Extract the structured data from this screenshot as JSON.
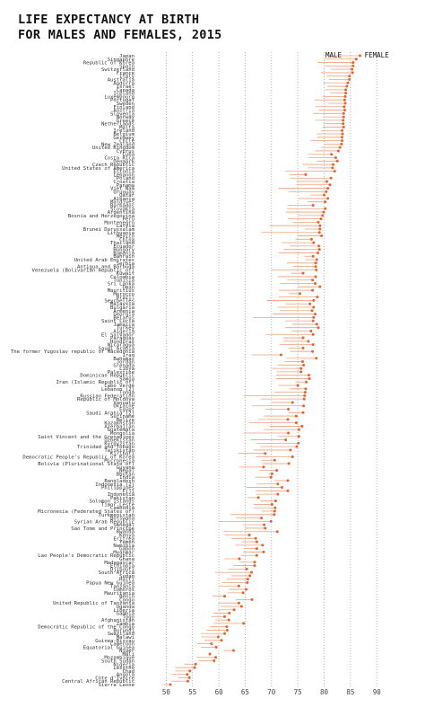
{
  "chart_data": {
    "type": "dumbbell",
    "title_lines": [
      "LIFE EXPECTANCY AT BIRTH",
      "FOR MALES AND FEMALES, 2015"
    ],
    "legend": {
      "male": "MALE",
      "female": "FEMALE"
    },
    "colors": {
      "female": "#e8622d",
      "male_line": "#f2a07a",
      "grid": "#9a9a9a"
    },
    "xlim": [
      45,
      92
    ],
    "xticks": [
      50,
      55,
      60,
      65,
      70,
      75,
      80,
      85,
      90
    ],
    "grid": "dotted-vertical",
    "rows": [
      {
        "country": "Japan",
        "male": 80.5,
        "female": 86.8
      },
      {
        "country": "Singapore",
        "male": 80.0,
        "female": 86.1
      },
      {
        "country": "Republic of Korea",
        "male": 78.8,
        "female": 85.5
      },
      {
        "country": "Spain",
        "male": 80.1,
        "female": 85.5
      },
      {
        "country": "Switzerland",
        "male": 81.3,
        "female": 85.3
      },
      {
        "country": "France",
        "male": 79.4,
        "female": 85.4
      },
      {
        "country": "Italy",
        "male": 80.5,
        "female": 84.8
      },
      {
        "country": "Australia",
        "male": 80.9,
        "female": 84.8
      },
      {
        "country": "Andorra",
        "male": 79.9,
        "female": 84.5
      },
      {
        "country": "Israel",
        "male": 80.6,
        "female": 84.3
      },
      {
        "country": "Canada",
        "male": 80.2,
        "female": 84.1
      },
      {
        "country": "Iceland",
        "male": 81.2,
        "female": 84.1
      },
      {
        "country": "Luxembourg",
        "male": 79.8,
        "female": 84.0
      },
      {
        "country": "Portugal",
        "male": 78.2,
        "female": 83.9
      },
      {
        "country": "Sweden",
        "male": 80.7,
        "female": 84.0
      },
      {
        "country": "Finland",
        "male": 78.3,
        "female": 83.8
      },
      {
        "country": "Austria",
        "male": 79.0,
        "female": 83.9
      },
      {
        "country": "Slovenia",
        "male": 77.9,
        "female": 83.7
      },
      {
        "country": "Norway",
        "male": 79.8,
        "female": 83.7
      },
      {
        "country": "Greece",
        "male": 78.3,
        "female": 83.6
      },
      {
        "country": "Netherlands",
        "male": 80.0,
        "female": 83.6
      },
      {
        "country": "Malta",
        "male": 79.7,
        "female": 83.7
      },
      {
        "country": "Ireland",
        "male": 79.4,
        "female": 83.4
      },
      {
        "country": "Belgium",
        "male": 78.6,
        "female": 83.5
      },
      {
        "country": "Germany",
        "male": 78.7,
        "female": 83.4
      },
      {
        "country": "Chile",
        "male": 77.4,
        "female": 83.4
      },
      {
        "country": "New Zealand",
        "male": 80.0,
        "female": 83.3
      },
      {
        "country": "United Kingdom",
        "male": 79.4,
        "female": 83.0
      },
      {
        "country": "Cyprus",
        "male": 78.3,
        "female": 82.7
      },
      {
        "country": "Cuba",
        "male": 76.9,
        "female": 81.4
      },
      {
        "country": "Costa Rica",
        "male": 77.1,
        "female": 82.2
      },
      {
        "country": "Denmark",
        "male": 78.6,
        "female": 82.5
      },
      {
        "country": "Czech Republic",
        "male": 75.9,
        "female": 81.7
      },
      {
        "country": "United States of America",
        "male": 76.9,
        "female": 81.6
      },
      {
        "country": "Estonia",
        "male": 72.7,
        "female": 82.0
      },
      {
        "country": "Lebanon",
        "male": 73.5,
        "female": 76.5
      },
      {
        "country": "Poland",
        "male": 73.6,
        "female": 81.3
      },
      {
        "country": "Croatia",
        "male": 74.7,
        "female": 80.5
      },
      {
        "country": "Panama",
        "male": 74.7,
        "female": 81.1
      },
      {
        "country": "Viet Nam",
        "male": 71.3,
        "female": 80.7
      },
      {
        "country": "Uruguay",
        "male": 73.3,
        "female": 80.4
      },
      {
        "country": "Qatar",
        "male": 77.4,
        "female": 80.0
      },
      {
        "country": "Albania",
        "male": 75.1,
        "female": 80.7
      },
      {
        "country": "Maldives",
        "male": 76.9,
        "female": 80.2
      },
      {
        "country": "Barbados",
        "male": 73.1,
        "female": 77.9
      },
      {
        "country": "Slovakia",
        "male": 72.9,
        "female": 80.2
      },
      {
        "country": "Argentina",
        "male": 72.7,
        "female": 79.9
      },
      {
        "country": "Bosnia and Herzegovina",
        "male": 75.0,
        "female": 79.7
      },
      {
        "country": "Peru",
        "male": 73.1,
        "female": 79.4
      },
      {
        "country": "Montenegro",
        "male": 74.1,
        "female": 78.9
      },
      {
        "country": "Latvia",
        "male": 69.6,
        "female": 79.2
      },
      {
        "country": "Brunei Darussalam",
        "male": 76.3,
        "female": 79.2
      },
      {
        "country": "Lithuania",
        "male": 68.1,
        "female": 79.1
      },
      {
        "country": "Mexico",
        "male": 74.9,
        "female": 79.5
      },
      {
        "country": "China",
        "male": 74.6,
        "female": 77.6
      },
      {
        "country": "Thailand",
        "male": 71.9,
        "female": 78.0
      },
      {
        "country": "Ecuador",
        "male": 73.5,
        "female": 79.0
      },
      {
        "country": "Hungary",
        "male": 72.3,
        "female": 79.1
      },
      {
        "country": "Romania",
        "male": 71.4,
        "female": 78.8
      },
      {
        "country": "Bahrain",
        "male": 76.2,
        "female": 77.9
      },
      {
        "country": "United Arab Emirates",
        "male": 76.4,
        "female": 78.6
      },
      {
        "country": "Serbia",
        "male": 72.9,
        "female": 78.4
      },
      {
        "country": "Antigua and Barbuda",
        "male": 74.1,
        "female": 78.4
      },
      {
        "country": "Venezuela (Bolivarian Republic of)",
        "male": 70.0,
        "female": 78.5
      },
      {
        "country": "Kuwait",
        "male": 73.7,
        "female": 76.0
      },
      {
        "country": "Colombia",
        "male": 71.2,
        "female": 78.4
      },
      {
        "country": "Tunisia",
        "male": 73.0,
        "female": 77.8
      },
      {
        "country": "Sri Lanka",
        "male": 71.6,
        "female": 78.3
      },
      {
        "country": "Oman",
        "male": 75.0,
        "female": 79.2
      },
      {
        "country": "Mauritius",
        "male": 71.4,
        "female": 77.8
      },
      {
        "country": "Morocco",
        "male": 73.3,
        "female": 75.4
      },
      {
        "country": "Brazil",
        "male": 71.4,
        "female": 78.7
      },
      {
        "country": "Seychelles",
        "male": 69.1,
        "female": 78.0
      },
      {
        "country": "Malaysia",
        "male": 72.7,
        "female": 77.3
      },
      {
        "country": "Bulgaria",
        "male": 71.1,
        "female": 78.0
      },
      {
        "country": "Armenia",
        "male": 71.6,
        "female": 77.7
      },
      {
        "country": "Georgia",
        "male": 70.3,
        "female": 78.3
      },
      {
        "country": "Belarus",
        "male": 66.5,
        "female": 78.0
      },
      {
        "country": "Saint Lucia",
        "male": 72.6,
        "female": 77.9
      },
      {
        "country": "Jamaica",
        "male": 73.9,
        "female": 78.6
      },
      {
        "country": "Turkey",
        "male": 72.6,
        "female": 78.9
      },
      {
        "country": "Algeria",
        "male": 73.8,
        "female": 77.5
      },
      {
        "country": "El Salvador",
        "male": 68.8,
        "female": 77.9
      },
      {
        "country": "Paraguay",
        "male": 72.2,
        "female": 76.0
      },
      {
        "country": "Honduras",
        "male": 72.3,
        "female": 77.0
      },
      {
        "country": "Nicaragua",
        "male": 71.5,
        "female": 77.9
      },
      {
        "country": "Saudi Arabia",
        "male": 73.2,
        "female": 76.0
      },
      {
        "country": "The former Yugoslav republic of Macedonia",
        "male": 73.5,
        "female": 77.8
      },
      {
        "country": "Iraq",
        "male": 66.2,
        "female": 71.8
      },
      {
        "country": "Bahamas",
        "male": 72.9,
        "female": 78.5
      },
      {
        "country": "Jordan",
        "male": 72.5,
        "female": 75.9
      },
      {
        "country": "Grenada",
        "male": 71.2,
        "female": 76.1
      },
      {
        "country": "Libya",
        "male": 70.1,
        "female": 75.6
      },
      {
        "country": "Palestine",
        "male": 71.0,
        "female": 75.6
      },
      {
        "country": "Dominican Republic",
        "male": 70.9,
        "female": 77.1
      },
      {
        "country": "Samoa",
        "male": 70.9,
        "female": 77.2
      },
      {
        "country": "Iran (Islamic Republic of)",
        "male": 74.5,
        "female": 76.6
      },
      {
        "country": "Cabo Verde",
        "male": 71.3,
        "female": 75.0
      },
      {
        "country": "Lebanon (2)",
        "male": 73.5,
        "female": 76.5
      },
      {
        "country": "Tonga",
        "male": 70.6,
        "female": 76.4
      },
      {
        "country": "Russian Federation",
        "male": 64.7,
        "female": 76.3
      },
      {
        "country": "Republic of Moldova",
        "male": 67.9,
        "female": 76.2
      },
      {
        "country": "Vanuatu",
        "male": 70.1,
        "female": 74.0
      },
      {
        "country": "Ukraine",
        "male": 66.3,
        "female": 76.1
      },
      {
        "country": "Egypt",
        "male": 68.8,
        "female": 73.2
      },
      {
        "country": "Saudi Arabia (2)",
        "male": 73.2,
        "female": 76.0
      },
      {
        "country": "Suriname",
        "male": 68.6,
        "female": 74.7
      },
      {
        "country": "Belize",
        "male": 67.5,
        "female": 73.1
      },
      {
        "country": "Kazakhstan",
        "male": 65.7,
        "female": 74.7
      },
      {
        "country": "Azerbaijan",
        "male": 69.6,
        "female": 75.8
      },
      {
        "country": "Guatemala",
        "male": 68.5,
        "female": 75.2
      },
      {
        "country": "Mongolia",
        "male": 64.7,
        "female": 73.2
      },
      {
        "country": "Saint Vincent and the Grenadines",
        "male": 71.3,
        "female": 75.2
      },
      {
        "country": "Uzbekistan",
        "male": 66.1,
        "female": 72.7
      },
      {
        "country": "Kyrgyzstan",
        "male": 67.2,
        "female": 75.1
      },
      {
        "country": "Trinidad and Tobago",
        "male": 67.9,
        "female": 74.8
      },
      {
        "country": "Tajikistan",
        "male": 66.6,
        "female": 73.6
      },
      {
        "country": "Kiribati",
        "male": 63.7,
        "female": 68.8
      },
      {
        "country": "Democratic People's Republic of Korea",
        "male": 67.0,
        "female": 74.0
      },
      {
        "country": "Micronesia",
        "male": 68.1,
        "female": 70.6
      },
      {
        "country": "Bolivia (Plurinational State of)",
        "male": 68.2,
        "female": 73.3
      },
      {
        "country": "Guyana",
        "male": 63.9,
        "female": 68.5
      },
      {
        "country": "Nepal",
        "male": 67.7,
        "female": 71.0
      },
      {
        "country": "Bhutan",
        "male": 69.5,
        "female": 70.1
      },
      {
        "country": "India",
        "male": 66.9,
        "female": 69.9
      },
      {
        "country": "Bangladesh",
        "male": 70.6,
        "female": 73.1
      },
      {
        "country": "Indonesia (2)",
        "male": 67.1,
        "female": 71.2
      },
      {
        "country": "Philippines",
        "male": 65.3,
        "female": 72.0
      },
      {
        "country": "Fiji",
        "male": 67.0,
        "female": 73.1
      },
      {
        "country": "Indonesia",
        "male": 67.1,
        "female": 71.2
      },
      {
        "country": "Pakistan",
        "male": 65.5,
        "female": 67.5
      },
      {
        "country": "Solomon Islands",
        "male": 67.9,
        "female": 70.8
      },
      {
        "country": "Timor-Leste",
        "male": 66.6,
        "female": 70.1
      },
      {
        "country": "Cambodia",
        "male": 66.6,
        "female": 70.7
      },
      {
        "country": "Micronesia (Federated States of)",
        "male": 68.1,
        "female": 70.6
      },
      {
        "country": "Turkmenistan",
        "male": 62.2,
        "female": 70.5
      },
      {
        "country": "Botswana",
        "male": 63.3,
        "female": 68.1
      },
      {
        "country": "Syrian Arab Republic",
        "male": 59.9,
        "female": 69.9
      },
      {
        "country": "Senegal",
        "male": 64.6,
        "female": 68.6
      },
      {
        "country": "Sao Tome and Principe",
        "male": 65.0,
        "female": 68.8
      },
      {
        "country": "Rwanda",
        "male": 60.9,
        "female": 71.1
      },
      {
        "country": "Kenya",
        "male": 61.1,
        "female": 65.8
      },
      {
        "country": "Eritrea",
        "male": 62.4,
        "female": 67.0
      },
      {
        "country": "Yemen",
        "male": 64.3,
        "female": 67.2
      },
      {
        "country": "Namibia",
        "male": 63.1,
        "female": 68.3
      },
      {
        "country": "Gabon",
        "male": 64.7,
        "female": 67.2
      },
      {
        "country": "Myanmar",
        "male": 64.6,
        "female": 68.5
      },
      {
        "country": "Lao People's Democratic Republic",
        "male": 64.1,
        "female": 67.2
      },
      {
        "country": "Ghana",
        "male": 61.0,
        "female": 63.9
      },
      {
        "country": "Madagascar",
        "male": 63.9,
        "female": 66.8
      },
      {
        "country": "Ethiopia",
        "male": 62.8,
        "female": 66.8
      },
      {
        "country": "Djibouti",
        "male": 61.8,
        "female": 65.3
      },
      {
        "country": "South Africa",
        "male": 59.3,
        "female": 66.2
      },
      {
        "country": "Sudan",
        "male": 62.4,
        "female": 65.9
      },
      {
        "country": "Haiti",
        "male": 61.5,
        "female": 65.5
      },
      {
        "country": "Papua New Guinea",
        "male": 60.6,
        "female": 65.4
      },
      {
        "country": "Tanzania",
        "male": 59.9,
        "female": 63.8
      },
      {
        "country": "Comoros",
        "male": 61.9,
        "female": 65.2
      },
      {
        "country": "Mauritania",
        "male": 61.6,
        "female": 64.6
      },
      {
        "country": "Benin",
        "male": 58.8,
        "female": 61.1
      },
      {
        "country": "Congo",
        "male": 63.2,
        "female": 66.3
      },
      {
        "country": "United Republic of Tanzania",
        "male": 59.9,
        "female": 63.8
      },
      {
        "country": "Uganda",
        "male": 60.3,
        "female": 64.3
      },
      {
        "country": "Liberia",
        "male": 59.8,
        "female": 62.9
      },
      {
        "country": "Gambia",
        "male": 59.0,
        "female": 62.0
      },
      {
        "country": "Togo",
        "male": 58.6,
        "female": 61.1
      },
      {
        "country": "Afghanistan",
        "male": 59.3,
        "female": 61.9
      },
      {
        "country": "Zambia",
        "male": 59.0,
        "female": 64.7
      },
      {
        "country": "Democratic Republic of the Congo",
        "male": 58.3,
        "female": 61.5
      },
      {
        "country": "Burundi",
        "male": 57.7,
        "female": 61.6
      },
      {
        "country": "Swaziland",
        "male": 56.6,
        "female": 61.1
      },
      {
        "country": "Malawi",
        "male": 56.7,
        "female": 59.9
      },
      {
        "country": "Guinea-Bissau",
        "male": 57.2,
        "female": 60.5
      },
      {
        "country": "Cameroon",
        "male": 55.9,
        "female": 58.6
      },
      {
        "country": "Equatorial Guinea",
        "male": 56.6,
        "female": 59.5
      },
      {
        "country": "Niger",
        "male": 60.9,
        "female": 62.8
      },
      {
        "country": "Mali",
        "male": 58.2,
        "female": 58.3
      },
      {
        "country": "Mozambique",
        "male": 55.7,
        "female": 59.4
      },
      {
        "country": "South Sudan",
        "male": 56.1,
        "female": 59.1
      },
      {
        "country": "Nigeria",
        "male": 53.4,
        "female": 55.6
      },
      {
        "country": "Lesotho",
        "male": 51.7,
        "female": 55.4
      },
      {
        "country": "Chad",
        "male": 51.7,
        "female": 54.5
      },
      {
        "country": "Angola",
        "male": 50.9,
        "female": 54.0
      },
      {
        "country": "Côte d'Ivoire",
        "male": 52.3,
        "female": 54.4
      },
      {
        "country": "Central African Republic",
        "male": 50.9,
        "female": 54.1
      },
      {
        "country": "Sierra Leone",
        "male": 49.3,
        "female": 50.8
      }
    ]
  }
}
